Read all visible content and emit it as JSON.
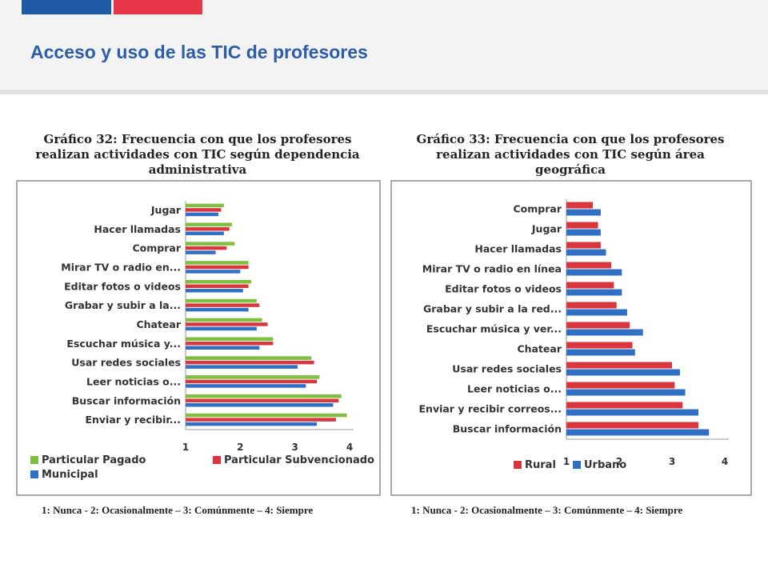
{
  "slide": {
    "title": "Acceso y uso de las TIC de profesores",
    "accent_blue": "#1f5aa6",
    "accent_red": "#e8364b",
    "title_color": "#2b5da8"
  },
  "chart_data": [
    {
      "type": "bar",
      "orientation": "horizontal",
      "title": "Gráfico 32: Frecuencia con que los profesores realizan actividades con TIC según dependencia administrativa",
      "title_lines": [
        "Gráfico 32: Frecuencia con que los profesores",
        "realizan actividades con TIC según dependencia",
        "administrativa"
      ],
      "categories": [
        "Jugar",
        "Hacer llamadas",
        "Comprar",
        "Mirar TV o radio en...",
        "Editar fotos o videos",
        "Grabar y subir a la...",
        "Chatear",
        "Escuchar música y...",
        "Usar redes sociales",
        "Leer noticias o...",
        "Buscar información",
        "Enviar y recibir..."
      ],
      "series": [
        {
          "name": "Particular Pagado",
          "color": "#7fbf3f",
          "values": [
            1.7,
            1.85,
            1.9,
            2.15,
            2.2,
            2.3,
            2.4,
            2.6,
            3.3,
            3.45,
            3.85,
            3.95
          ]
        },
        {
          "name": "Particular Subvencionado",
          "color": "#d9363e",
          "values": [
            1.65,
            1.8,
            1.75,
            2.15,
            2.15,
            2.35,
            2.5,
            2.6,
            3.35,
            3.4,
            3.8,
            3.75
          ]
        },
        {
          "name": "Municipal",
          "color": "#2f6fc4",
          "values": [
            1.6,
            1.7,
            1.55,
            2.0,
            2.05,
            2.15,
            2.3,
            2.35,
            3.05,
            3.2,
            3.7,
            3.4
          ]
        }
      ],
      "xlim": [
        1,
        4
      ],
      "xticks": [
        "1",
        "2",
        "3",
        "4"
      ],
      "legend_position": "bottom",
      "note": "1: Nunca  - 2: Ocasionalmente – 3: Comúnmente – 4: Siempre"
    },
    {
      "type": "bar",
      "orientation": "horizontal",
      "title": "Gráfico 33: Frecuencia con que los profesores realizan actividades con TIC según área geográfica",
      "title_lines": [
        "Gráfico 33: Frecuencia con que los profesores",
        "realizan actividades con TIC según área",
        "geográfica"
      ],
      "categories": [
        "Comprar",
        "Jugar",
        "Hacer llamadas",
        "Mirar TV o radio en línea",
        "Editar fotos o videos",
        "Grabar y subir a la red...",
        "Escuchar música y ver...",
        "Chatear",
        "Usar redes sociales",
        "Leer noticias o...",
        "Enviar y recibir correos...",
        "Buscar información"
      ],
      "series": [
        {
          "name": "Rural",
          "color": "#d9363e",
          "values": [
            1.5,
            1.6,
            1.65,
            1.85,
            1.9,
            1.95,
            2.2,
            2.25,
            3.0,
            3.05,
            3.2,
            3.5
          ]
        },
        {
          "name": "Urbano",
          "color": "#2f6fc4",
          "values": [
            1.65,
            1.65,
            1.75,
            2.05,
            2.05,
            2.15,
            2.45,
            2.3,
            3.15,
            3.25,
            3.5,
            3.7
          ]
        }
      ],
      "xlim": [
        1,
        4
      ],
      "xticks": [
        "1",
        "2",
        "3",
        "4"
      ],
      "legend_position": "bottom",
      "note": "1: Nunca  - 2: Ocasionalmente – 3: Comúnmente – 4: Siempre"
    }
  ]
}
